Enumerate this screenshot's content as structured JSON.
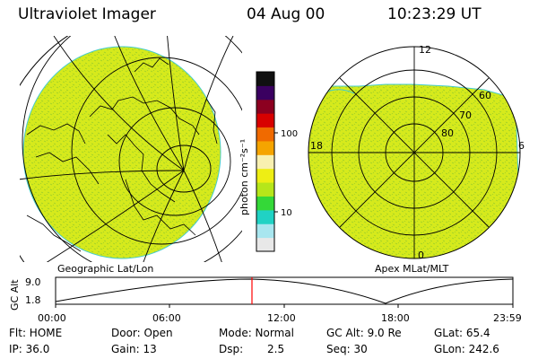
{
  "header": {
    "title": "Ultraviolet Imager",
    "date": "04 Aug 00",
    "time": "10:23:29 UT"
  },
  "colorbar": {
    "unit_label": "photon cm⁻²s⁻¹",
    "tick_labels": [
      "100",
      "10"
    ]
  },
  "left_map": {
    "caption": "Geographic Lat/Lon"
  },
  "right_map": {
    "caption": "Apex MLat/MLT",
    "mlt_labels": [
      "12",
      "18",
      "6",
      "0"
    ],
    "mlat_labels": [
      "60",
      "70",
      "80"
    ]
  },
  "timeline": {
    "axis_label": "GC Alt",
    "y_ticks": [
      "9.0",
      "1.8"
    ],
    "x_ticks": [
      "00:00",
      "06:00",
      "12:00",
      "18:00",
      "23:59"
    ],
    "marker_color": "#ff0000"
  },
  "status": {
    "flt": "Flt: HOME",
    "ip": "IP: 36.0",
    "door": "Door: Open",
    "gain": "Gain: 13",
    "mode": "Mode: Normal",
    "dsp": "Dsp:",
    "dsp_value": "2.5",
    "gc_alt": "GC Alt: 9.0 Re",
    "seq": "Seq: 30",
    "glat": "GLat: 65.4",
    "glon": "GLon: 242.6"
  },
  "colors": {
    "emission_fill": "#d6ea1c",
    "colorbar_stops": [
      "#e8e8e8",
      "#a8e6ef",
      "#20d2c4",
      "#34d838",
      "#b6e61a",
      "#eeee14",
      "#f8f0b0",
      "#f5a400",
      "#f06a00",
      "#d80000",
      "#8c0020",
      "#3a0060",
      "#101010"
    ]
  }
}
